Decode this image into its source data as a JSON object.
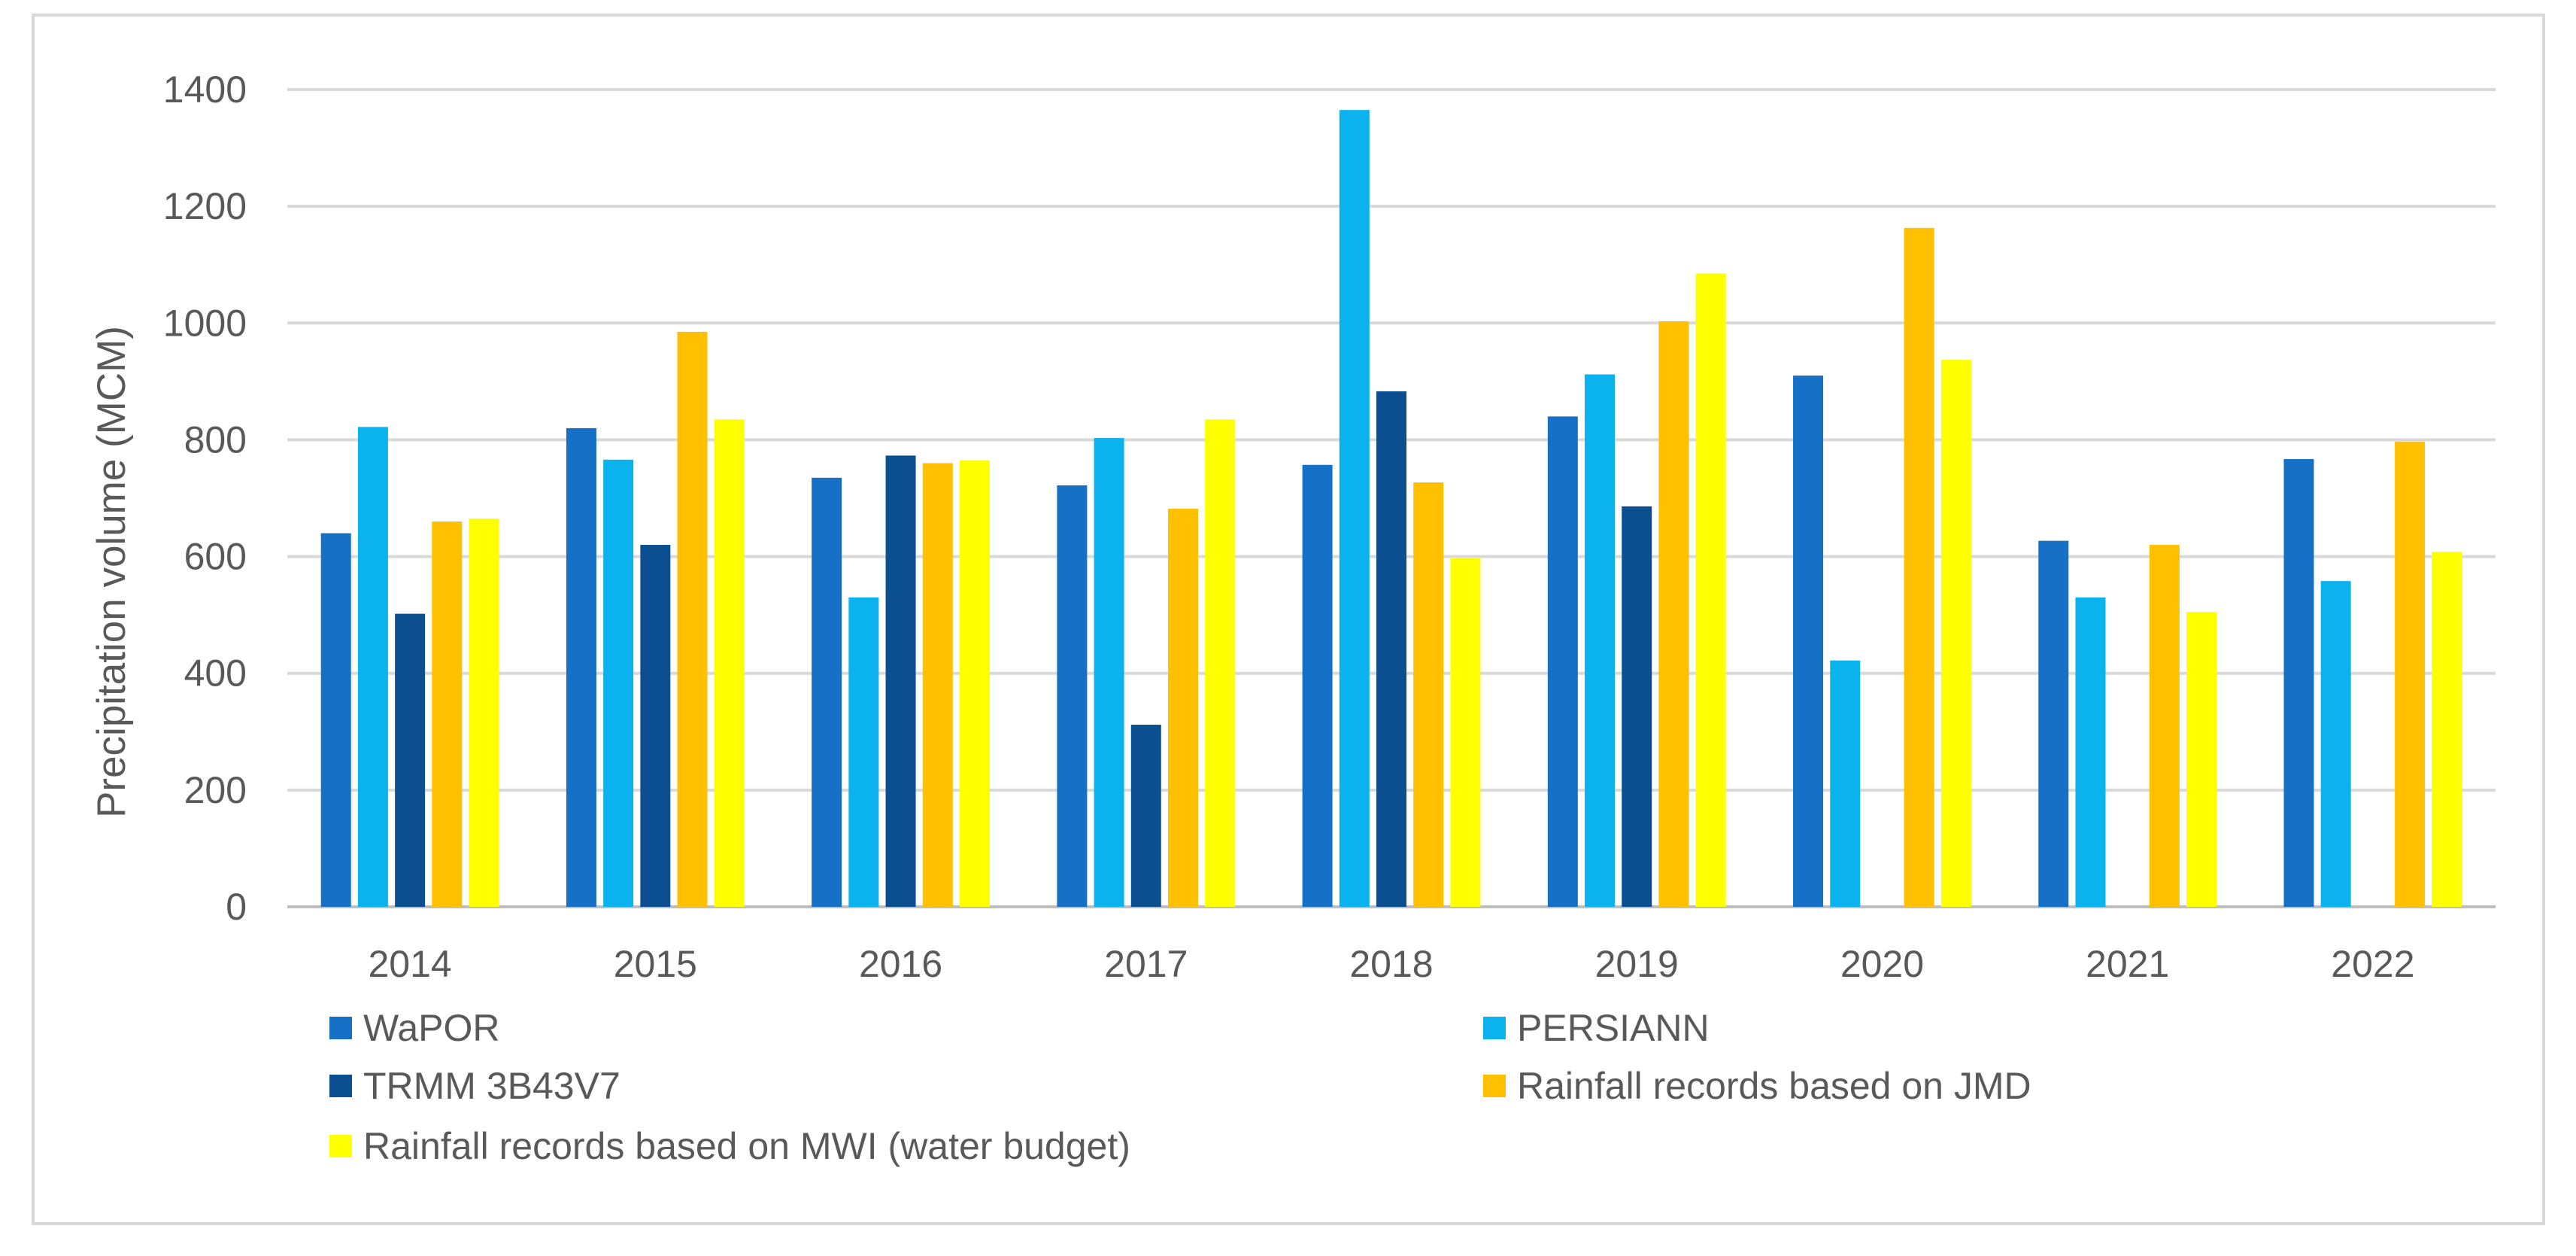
{
  "chart_data": {
    "type": "bar",
    "title": "",
    "xlabel": "",
    "ylabel": "Precipitation volume (MCM)",
    "ylim": [
      0,
      1400
    ],
    "yticks": [
      0,
      200,
      400,
      600,
      800,
      1000,
      1200,
      1400
    ],
    "grid": true,
    "legend_position": "bottom",
    "categories": [
      "2014",
      "2015",
      "2016",
      "2017",
      "2018",
      "2019",
      "2020",
      "2021",
      "2022"
    ],
    "series": [
      {
        "name": " WaPOR",
        "color": "#1570C6",
        "values": [
          640,
          820,
          735,
          722,
          757,
          840,
          910,
          627,
          767
        ]
      },
      {
        "name": "PERSIANN",
        "color": "#0AB2EE",
        "values": [
          822,
          766,
          530,
          803,
          1365,
          912,
          422,
          530,
          558
        ]
      },
      {
        "name": "TRMM 3B43V7",
        "color": "#0B4F91",
        "values": [
          502,
          620,
          773,
          312,
          883,
          686,
          null,
          null,
          null
        ]
      },
      {
        "name": "Rainfall records based on JMD",
        "color": "#FFC000",
        "values": [
          660,
          985,
          760,
          682,
          727,
          1003,
          1163,
          620,
          797
        ]
      },
      {
        "name": "Rainfall records based on MWI (water budget)",
        "color": "#FFFF00",
        "values": [
          665,
          835,
          765,
          835,
          597,
          1085,
          937,
          505,
          608
        ]
      }
    ]
  }
}
